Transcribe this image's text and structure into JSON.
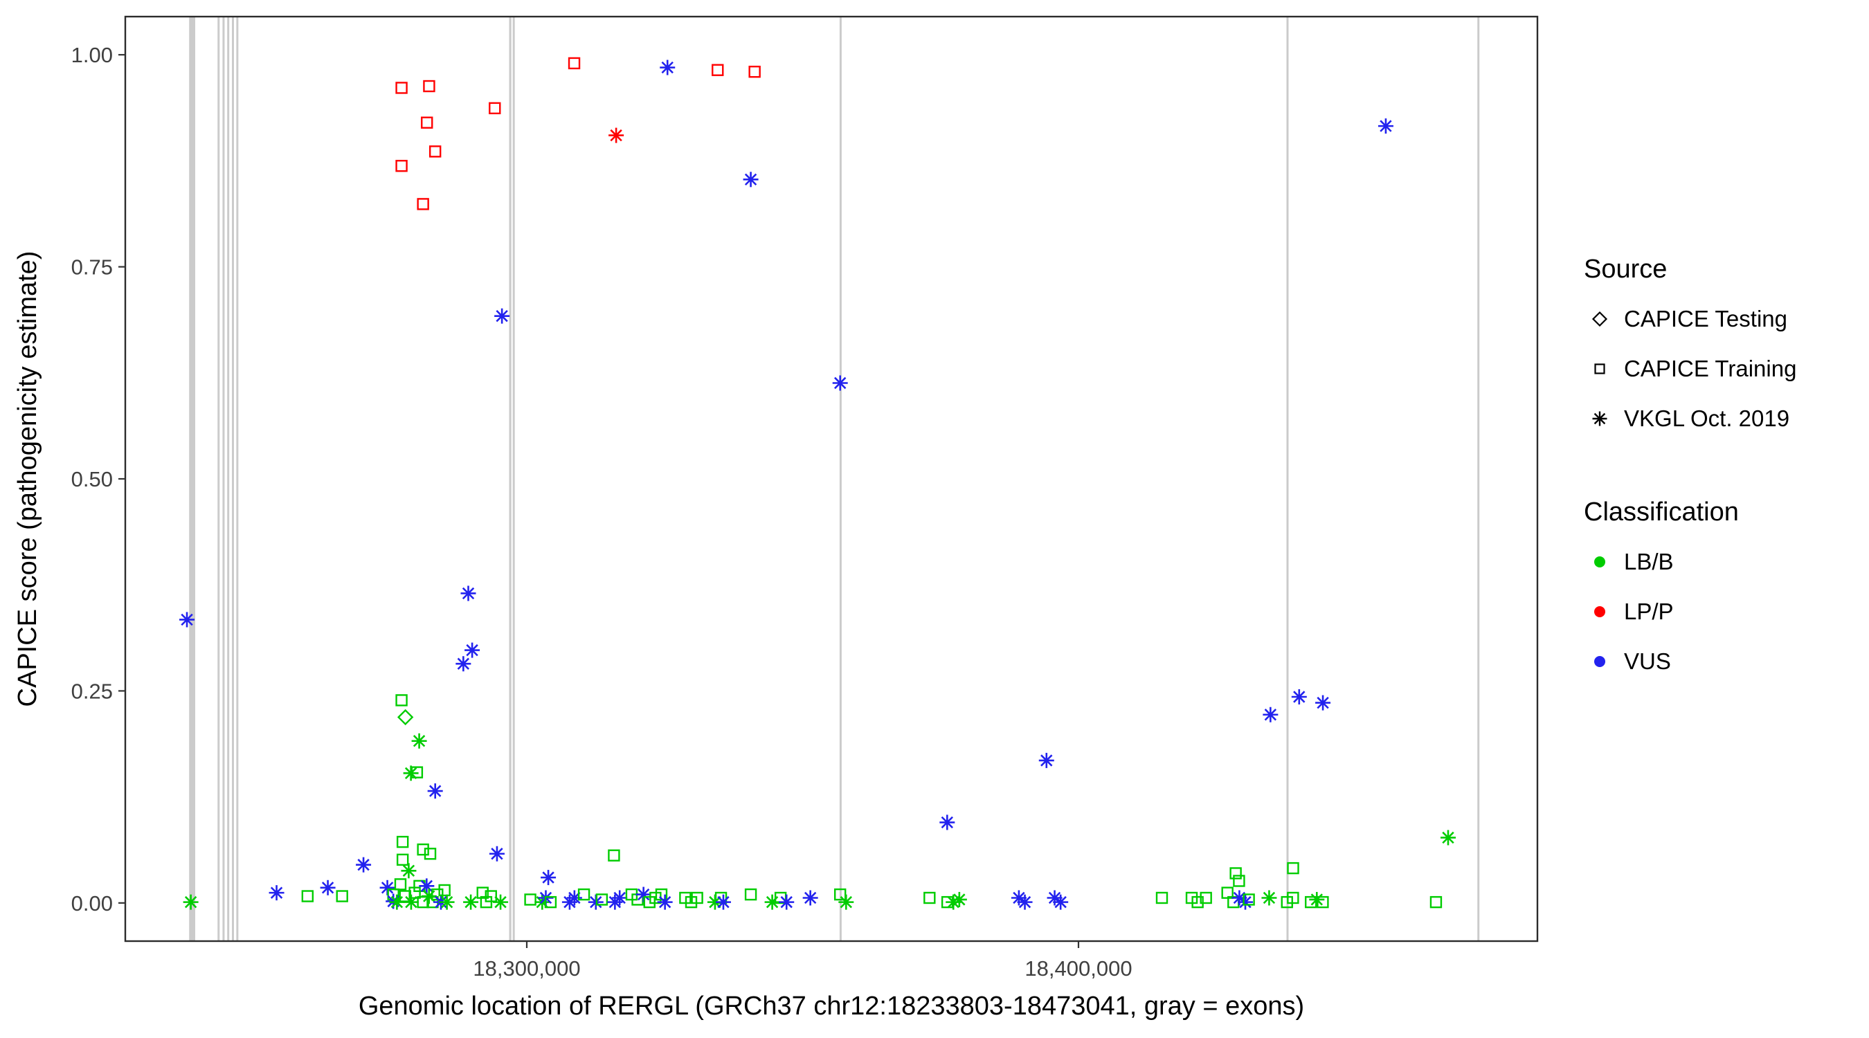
{
  "chart_data": {
    "type": "scatter",
    "title": "",
    "xlabel": "Genomic location of RERGL (GRCh37 chr12:18233803-18473041, gray = exons)",
    "ylabel": "CAPICE score (pathogenicity estimate)",
    "xlim": [
      18227228,
      18483187
    ],
    "ylim": [
      -0.045,
      1.045
    ],
    "xticks": {
      "values": [
        18300000,
        18400000
      ],
      "labels": [
        "18,300,000",
        "18,400,000"
      ]
    },
    "yticks": {
      "values": [
        0,
        0.25,
        0.5,
        0.75,
        1
      ],
      "labels": [
        "0.00",
        "0.25",
        "0.50",
        "0.75",
        "1.00"
      ]
    },
    "grid": false,
    "legend_position": "right",
    "exon_color": "#cbcbcb",
    "exons": [
      [
        18238800,
        18239900
      ],
      [
        18243950,
        18244300
      ],
      [
        18244850,
        18245200
      ],
      [
        18245700,
        18246050
      ],
      [
        18246550,
        18246900
      ],
      [
        18247350,
        18247700
      ],
      [
        18296800,
        18297200
      ],
      [
        18297450,
        18297750
      ],
      [
        18356700,
        18357050
      ],
      [
        18437700,
        18438050
      ],
      [
        18472300,
        18472650
      ]
    ],
    "colors": {
      "LB/B": "#00cc00",
      "LP/P": "#ff0000",
      "VUS": "#2222ee"
    },
    "shapes": {
      "CAPICE Testing": "diamond",
      "CAPICE Training": "square",
      "VKGL Oct. 2019": "asterisk"
    },
    "point_fields": [
      "x",
      "y",
      "source",
      "classification"
    ],
    "points": [
      [
        18277300,
        0.961,
        "CAPICE Training",
        "LP/P"
      ],
      [
        18282300,
        0.963,
        "CAPICE Training",
        "LP/P"
      ],
      [
        18277300,
        0.869,
        "CAPICE Training",
        "LP/P"
      ],
      [
        18281900,
        0.92,
        "CAPICE Training",
        "LP/P"
      ],
      [
        18283400,
        0.886,
        "CAPICE Training",
        "LP/P"
      ],
      [
        18281200,
        0.824,
        "CAPICE Training",
        "LP/P"
      ],
      [
        18294200,
        0.937,
        "CAPICE Training",
        "LP/P"
      ],
      [
        18308600,
        0.99,
        "CAPICE Training",
        "LP/P"
      ],
      [
        18334600,
        0.982,
        "CAPICE Training",
        "LP/P"
      ],
      [
        18341300,
        0.98,
        "CAPICE Training",
        "LP/P"
      ],
      [
        18316200,
        0.905,
        "VKGL Oct. 2019",
        "LP/P"
      ],
      [
        18325500,
        0.985,
        "VKGL Oct. 2019",
        "VUS"
      ],
      [
        18340600,
        0.853,
        "VKGL Oct. 2019",
        "VUS"
      ],
      [
        18455700,
        0.916,
        "VKGL Oct. 2019",
        "VUS"
      ],
      [
        18295500,
        0.692,
        "VKGL Oct. 2019",
        "VUS"
      ],
      [
        18356800,
        0.613,
        "VKGL Oct. 2019",
        "VUS"
      ],
      [
        18289400,
        0.365,
        "VKGL Oct. 2019",
        "VUS"
      ],
      [
        18290100,
        0.298,
        "VKGL Oct. 2019",
        "VUS"
      ],
      [
        18288500,
        0.282,
        "VKGL Oct. 2019",
        "VUS"
      ],
      [
        18238400,
        0.334,
        "VKGL Oct. 2019",
        "VUS"
      ],
      [
        18434800,
        0.222,
        "VKGL Oct. 2019",
        "VUS"
      ],
      [
        18440000,
        0.243,
        "VKGL Oct. 2019",
        "VUS"
      ],
      [
        18444300,
        0.236,
        "VKGL Oct. 2019",
        "VUS"
      ],
      [
        18394200,
        0.168,
        "VKGL Oct. 2019",
        "VUS"
      ],
      [
        18376200,
        0.095,
        "VKGL Oct. 2019",
        "VUS"
      ],
      [
        18283400,
        0.132,
        "VKGL Oct. 2019",
        "VUS"
      ],
      [
        18294600,
        0.058,
        "VKGL Oct. 2019",
        "VUS"
      ],
      [
        18303900,
        0.03,
        "VKGL Oct. 2019",
        "VUS"
      ],
      [
        18270400,
        0.045,
        "VKGL Oct. 2019",
        "VUS"
      ],
      [
        18278000,
        0.219,
        "CAPICE Testing",
        "LB/B"
      ],
      [
        18277300,
        0.239,
        "CAPICE Training",
        "LB/B"
      ],
      [
        18280100,
        0.154,
        "CAPICE Training",
        "LB/B"
      ],
      [
        18277500,
        0.072,
        "CAPICE Training",
        "LB/B"
      ],
      [
        18281200,
        0.063,
        "CAPICE Training",
        "LB/B"
      ],
      [
        18277500,
        0.051,
        "CAPICE Training",
        "LB/B"
      ],
      [
        18282500,
        0.058,
        "CAPICE Training",
        "LB/B"
      ],
      [
        18315800,
        0.056,
        "CAPICE Training",
        "LB/B"
      ],
      [
        18438900,
        0.041,
        "CAPICE Training",
        "LB/B"
      ],
      [
        18428500,
        0.035,
        "CAPICE Training",
        "LB/B"
      ],
      [
        18429100,
        0.026,
        "CAPICE Training",
        "LB/B"
      ],
      [
        18280500,
        0.191,
        "VKGL Oct. 2019",
        "LB/B"
      ],
      [
        18279000,
        0.153,
        "VKGL Oct. 2019",
        "LB/B"
      ],
      [
        18467000,
        0.077,
        "VKGL Oct. 2019",
        "LB/B"
      ],
      [
        18278600,
        0.038,
        "VKGL Oct. 2019",
        "LB/B"
      ],
      [
        18239100,
        0.001,
        "VKGL Oct. 2019",
        "LB/B"
      ],
      [
        18254650,
        0.012,
        "VKGL Oct. 2019",
        "VUS"
      ],
      [
        18260270,
        0.008,
        "CAPICE Training",
        "LB/B"
      ],
      [
        18263940,
        0.018,
        "VKGL Oct. 2019",
        "VUS"
      ],
      [
        18266530,
        0.008,
        "CAPICE Training",
        "LB/B"
      ],
      [
        18274730,
        0.018,
        "VKGL Oct. 2019",
        "VUS"
      ],
      [
        18275810,
        0.01,
        "CAPICE Training",
        "LB/B"
      ],
      [
        18275810,
        0.002,
        "VKGL Oct. 2019",
        "VUS"
      ],
      [
        18276460,
        0.001,
        "VKGL Oct. 2019",
        "LB/B"
      ],
      [
        18277100,
        0.022,
        "CAPICE Training",
        "LB/B"
      ],
      [
        18277960,
        0.008,
        "CAPICE Training",
        "LB/B"
      ],
      [
        18279040,
        0.001,
        "VKGL Oct. 2019",
        "LB/B"
      ],
      [
        18279690,
        0.012,
        "CAPICE Training",
        "LB/B"
      ],
      [
        18280550,
        0.02,
        "CAPICE Training",
        "LB/B"
      ],
      [
        18281200,
        0.001,
        "CAPICE Training",
        "LB/B"
      ],
      [
        18281850,
        0.02,
        "VKGL Oct. 2019",
        "VUS"
      ],
      [
        18282280,
        0.008,
        "VKGL Oct. 2019",
        "LB/B"
      ],
      [
        18282930,
        0.001,
        "CAPICE Training",
        "LB/B"
      ],
      [
        18283790,
        0.01,
        "CAPICE Training",
        "LB/B"
      ],
      [
        18284440,
        0.001,
        "VKGL Oct. 2019",
        "VUS"
      ],
      [
        18285090,
        0.015,
        "CAPICE Training",
        "LB/B"
      ],
      [
        18285520,
        0.001,
        "VKGL Oct. 2019",
        "LB/B"
      ],
      [
        18289850,
        0.001,
        "VKGL Oct. 2019",
        "LB/B"
      ],
      [
        18292000,
        0.012,
        "CAPICE Training",
        "LB/B"
      ],
      [
        18292650,
        0.001,
        "CAPICE Training",
        "LB/B"
      ],
      [
        18293510,
        0.008,
        "CAPICE Training",
        "LB/B"
      ],
      [
        18295240,
        0.001,
        "VKGL Oct. 2019",
        "LB/B"
      ],
      [
        18300640,
        0.004,
        "CAPICE Training",
        "LB/B"
      ],
      [
        18302800,
        0.001,
        "VKGL Oct. 2019",
        "LB/B"
      ],
      [
        18303450,
        0.006,
        "VKGL Oct. 2019",
        "VUS"
      ],
      [
        18304320,
        0.001,
        "CAPICE Training",
        "LB/B"
      ],
      [
        18307770,
        0.001,
        "VKGL Oct. 2019",
        "VUS"
      ],
      [
        18308640,
        0.006,
        "VKGL Oct. 2019",
        "VUS"
      ],
      [
        18310360,
        0.01,
        "CAPICE Training",
        "LB/B"
      ],
      [
        18312520,
        0.001,
        "VKGL Oct. 2019",
        "VUS"
      ],
      [
        18313600,
        0.004,
        "CAPICE Training",
        "LB/B"
      ],
      [
        18315980,
        0.001,
        "VKGL Oct. 2019",
        "VUS"
      ],
      [
        18316840,
        0.006,
        "VKGL Oct. 2019",
        "VUS"
      ],
      [
        18319000,
        0.01,
        "CAPICE Training",
        "LB/B"
      ],
      [
        18320080,
        0.004,
        "CAPICE Training",
        "LB/B"
      ],
      [
        18321160,
        0.01,
        "VKGL Oct. 2019",
        "VUS"
      ],
      [
        18322240,
        0.001,
        "CAPICE Training",
        "LB/B"
      ],
      [
        18323320,
        0.006,
        "CAPICE Training",
        "LB/B"
      ],
      [
        18324400,
        0.01,
        "CAPICE Training",
        "LB/B"
      ],
      [
        18325050,
        0.001,
        "VKGL Oct. 2019",
        "VUS"
      ],
      [
        18328720,
        0.006,
        "CAPICE Training",
        "LB/B"
      ],
      [
        18329800,
        0.001,
        "CAPICE Training",
        "LB/B"
      ],
      [
        18330880,
        0.006,
        "CAPICE Training",
        "LB/B"
      ],
      [
        18334120,
        0.001,
        "VKGL Oct. 2019",
        "LB/B"
      ],
      [
        18335200,
        0.006,
        "CAPICE Training",
        "LB/B"
      ],
      [
        18335630,
        0.001,
        "VKGL Oct. 2019",
        "VUS"
      ],
      [
        18340600,
        0.01,
        "CAPICE Training",
        "LB/B"
      ],
      [
        18344490,
        0.001,
        "VKGL Oct. 2019",
        "LB/B"
      ],
      [
        18346000,
        0.006,
        "CAPICE Training",
        "LB/B"
      ],
      [
        18347080,
        0.001,
        "VKGL Oct. 2019",
        "VUS"
      ],
      [
        18351400,
        0.006,
        "VKGL Oct. 2019",
        "VUS"
      ],
      [
        18356800,
        0.01,
        "CAPICE Training",
        "LB/B"
      ],
      [
        18357880,
        0.001,
        "VKGL Oct. 2019",
        "LB/B"
      ],
      [
        18373000,
        0.006,
        "CAPICE Training",
        "LB/B"
      ],
      [
        18376240,
        0.001,
        "CAPICE Training",
        "LB/B"
      ],
      [
        18377320,
        0.001,
        "VKGL Oct. 2019",
        "LB/B"
      ],
      [
        18378400,
        0.004,
        "VKGL Oct. 2019",
        "LB/B"
      ],
      [
        18389200,
        0.006,
        "VKGL Oct. 2019",
        "VUS"
      ],
      [
        18390280,
        0.001,
        "VKGL Oct. 2019",
        "VUS"
      ],
      [
        18395680,
        0.006,
        "VKGL Oct. 2019",
        "VUS"
      ],
      [
        18396760,
        0.001,
        "VKGL Oct. 2019",
        "VUS"
      ],
      [
        18415120,
        0.006,
        "CAPICE Training",
        "LB/B"
      ],
      [
        18420520,
        0.006,
        "CAPICE Training",
        "LB/B"
      ],
      [
        18421600,
        0.001,
        "CAPICE Training",
        "LB/B"
      ],
      [
        18423110,
        0.006,
        "CAPICE Training",
        "LB/B"
      ],
      [
        18427000,
        0.012,
        "CAPICE Training",
        "LB/B"
      ],
      [
        18428080,
        0.001,
        "CAPICE Training",
        "LB/B"
      ],
      [
        18429160,
        0.006,
        "VKGL Oct. 2019",
        "VUS"
      ],
      [
        18430240,
        0.001,
        "VKGL Oct. 2019",
        "VUS"
      ],
      [
        18430880,
        0.004,
        "CAPICE Training",
        "LB/B"
      ],
      [
        18434560,
        0.006,
        "VKGL Oct. 2019",
        "LB/B"
      ],
      [
        18437800,
        0.001,
        "CAPICE Training",
        "LB/B"
      ],
      [
        18438880,
        0.006,
        "CAPICE Training",
        "LB/B"
      ],
      [
        18442120,
        0.001,
        "CAPICE Training",
        "LB/B"
      ],
      [
        18443200,
        0.004,
        "VKGL Oct. 2019",
        "LB/B"
      ],
      [
        18444280,
        0.001,
        "CAPICE Training",
        "LB/B"
      ],
      [
        18464800,
        0.001,
        "CAPICE Training",
        "LB/B"
      ]
    ]
  },
  "legend": {
    "source": {
      "title": "Source",
      "items": [
        {
          "label": "CAPICE Testing",
          "shape": "diamond"
        },
        {
          "label": "CAPICE Training",
          "shape": "square"
        },
        {
          "label": "VKGL Oct. 2019",
          "shape": "asterisk"
        }
      ]
    },
    "classification": {
      "title": "Classification",
      "items": [
        {
          "label": "LB/B",
          "color": "#00cc00"
        },
        {
          "label": "LP/P",
          "color": "#ff0000"
        },
        {
          "label": "VUS",
          "color": "#2222ee"
        }
      ]
    }
  }
}
